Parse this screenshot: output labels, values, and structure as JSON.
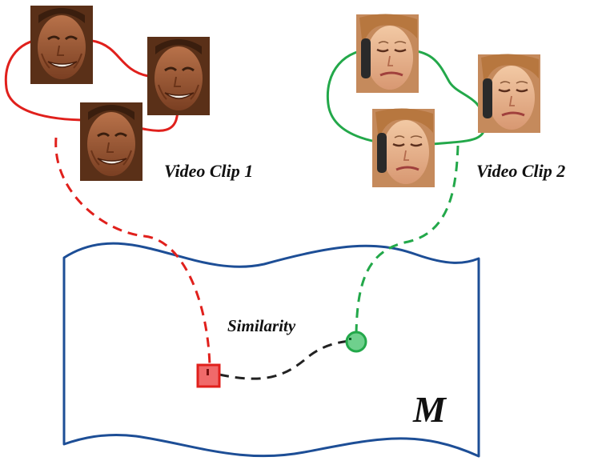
{
  "labels": {
    "clip1": "Video Clip 1",
    "clip2": "Video Clip 2",
    "similarity": "Similarity",
    "manifold": "M"
  },
  "colors": {
    "clip1": "#e0201c",
    "clip2": "#23a84a",
    "manifold": "#1d4e96",
    "similarity_link": "#222222",
    "clip1_point_fill": "#f06a6a",
    "clip2_point_fill": "#6fd08d"
  },
  "icons": {
    "clip1_faces": [
      "smiling-man-face",
      "smiling-man-face",
      "smiling-man-face"
    ],
    "clip2_faces": [
      "crying-woman-face",
      "crying-woman-face",
      "crying-woman-face"
    ],
    "clip1_point": "square-marker",
    "clip2_point": "circle-marker"
  }
}
